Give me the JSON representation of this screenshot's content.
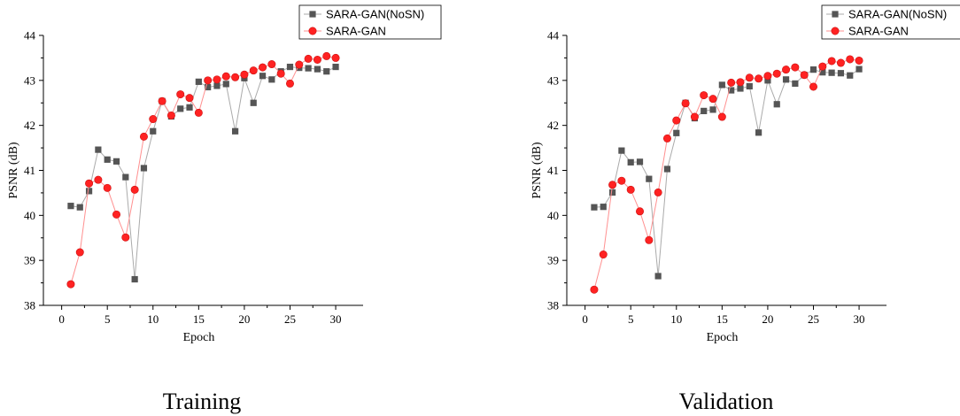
{
  "chart_data": [
    {
      "type": "line",
      "title": "",
      "caption": "Training",
      "xlabel": "Epoch",
      "ylabel": "PSNR (dB)",
      "xlim": [
        -2,
        33
      ],
      "ylim": [
        38,
        44
      ],
      "xticks": [
        0,
        5,
        10,
        15,
        20,
        25,
        30
      ],
      "yticks": [
        38,
        39,
        40,
        41,
        42,
        43,
        44
      ],
      "legend_position": "top-right",
      "x": [
        1,
        2,
        3,
        4,
        5,
        6,
        7,
        8,
        9,
        10,
        11,
        12,
        13,
        14,
        15,
        16,
        17,
        18,
        19,
        20,
        21,
        22,
        23,
        24,
        25,
        26,
        27,
        28,
        29,
        30
      ],
      "series": [
        {
          "name": "SARA-GAN(NoSN)",
          "marker": "square",
          "color": "#555555",
          "line_color": "#aaaaaa",
          "values": [
            40.21,
            40.18,
            40.54,
            41.46,
            41.24,
            41.2,
            40.85,
            38.58,
            41.05,
            41.87,
            42.54,
            42.2,
            42.37,
            42.4,
            42.97,
            42.85,
            42.88,
            42.92,
            41.87,
            43.05,
            42.5,
            43.1,
            43.02,
            43.2,
            43.3,
            43.28,
            43.27,
            43.25,
            43.2,
            43.3
          ]
        },
        {
          "name": "SARA-GAN",
          "marker": "circle",
          "color": "#ff2222",
          "line_color": "#ff9090",
          "values": [
            38.47,
            39.18,
            40.71,
            40.79,
            40.61,
            40.02,
            39.51,
            40.57,
            41.75,
            42.14,
            42.54,
            42.22,
            42.69,
            42.61,
            42.28,
            43.0,
            43.02,
            43.09,
            43.07,
            43.13,
            43.22,
            43.29,
            43.36,
            43.15,
            42.93,
            43.35,
            43.48,
            43.46,
            43.54,
            43.5
          ]
        }
      ]
    },
    {
      "type": "line",
      "title": "",
      "caption": "Validation",
      "xlabel": "Epoch",
      "ylabel": "PSNR (dB)",
      "xlim": [
        -2,
        33
      ],
      "ylim": [
        38,
        44
      ],
      "xticks": [
        0,
        5,
        10,
        15,
        20,
        25,
        30
      ],
      "yticks": [
        38,
        39,
        40,
        41,
        42,
        43,
        44
      ],
      "legend_position": "top-right",
      "x": [
        1,
        2,
        3,
        4,
        5,
        6,
        7,
        8,
        9,
        10,
        11,
        12,
        13,
        14,
        15,
        16,
        17,
        18,
        19,
        20,
        21,
        22,
        23,
        24,
        25,
        26,
        27,
        28,
        29,
        30
      ],
      "series": [
        {
          "name": "SARA-GAN(NoSN)",
          "marker": "square",
          "color": "#555555",
          "line_color": "#aaaaaa",
          "values": [
            40.18,
            40.19,
            40.51,
            41.44,
            41.18,
            41.19,
            40.81,
            38.65,
            41.03,
            41.83,
            42.5,
            42.16,
            42.32,
            42.35,
            42.9,
            42.78,
            42.82,
            42.87,
            41.84,
            43.0,
            42.47,
            43.02,
            42.93,
            43.12,
            43.24,
            43.18,
            43.17,
            43.16,
            43.11,
            43.25
          ]
        },
        {
          "name": "SARA-GAN",
          "marker": "circle",
          "color": "#ff2222",
          "line_color": "#ff9090",
          "values": [
            38.35,
            39.13,
            40.68,
            40.77,
            40.57,
            40.09,
            39.45,
            40.51,
            41.71,
            42.11,
            42.49,
            42.19,
            42.67,
            42.59,
            42.19,
            42.95,
            42.96,
            43.06,
            43.04,
            43.1,
            43.15,
            43.24,
            43.29,
            43.12,
            42.86,
            43.31,
            43.43,
            43.39,
            43.47,
            43.44
          ]
        }
      ]
    }
  ]
}
